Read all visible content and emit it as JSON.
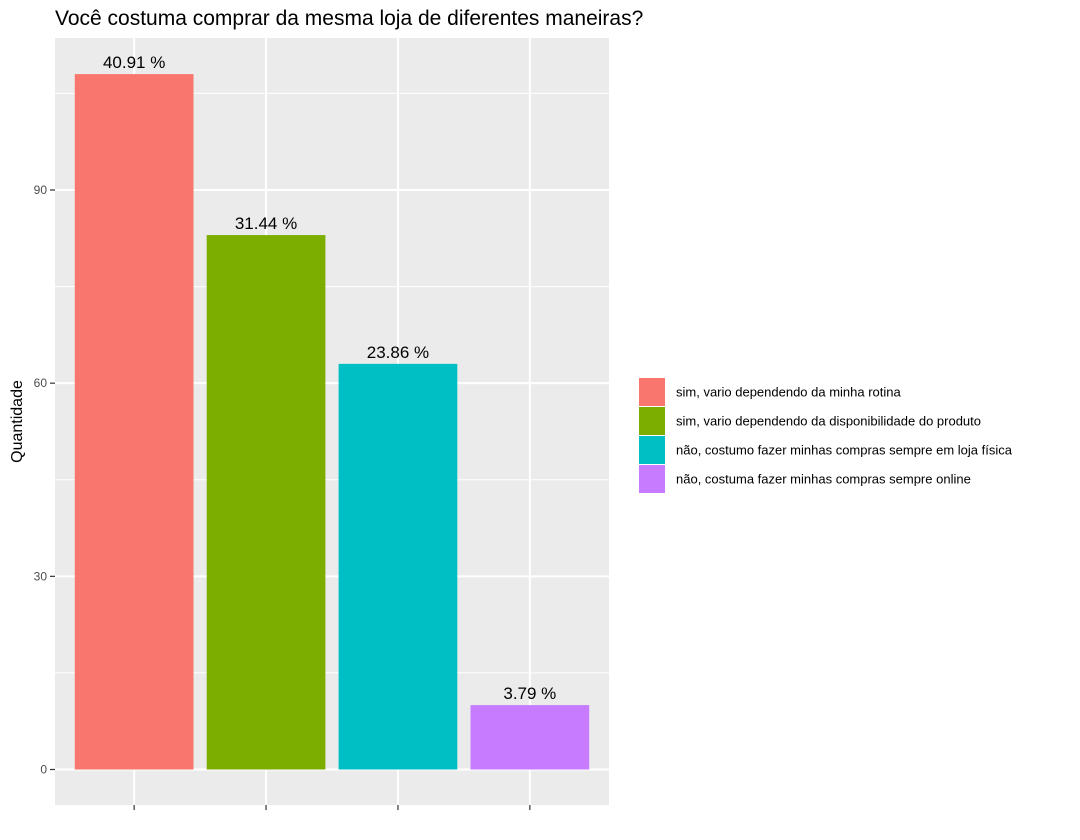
{
  "chart_data": {
    "type": "bar",
    "title": "Você costuma comprar da mesma loja de diferentes maneiras?",
    "xlabel": "",
    "ylabel": "Quantidade",
    "ylim": [
      0,
      110
    ],
    "yticks": [
      0,
      30,
      60,
      90
    ],
    "grid": true,
    "legend_position": "right",
    "categories": [
      "sim, vario dependendo da minha rotina",
      "sim, vario dependendo da disponibilidade do produto",
      "não, costumo fazer minhas compras sempre em loja física",
      "não, costuma fazer minhas compras sempre online"
    ],
    "values": [
      108,
      83,
      63,
      10
    ],
    "data_labels": [
      "40.91 %",
      "31.44 %",
      "23.86 %",
      "3.79 %"
    ],
    "colors": [
      "#F8766D",
      "#7CAE00",
      "#00BFC4",
      "#C77CFF"
    ],
    "panel_background": "#EBEBEB",
    "grid_color": "#FFFFFF"
  }
}
